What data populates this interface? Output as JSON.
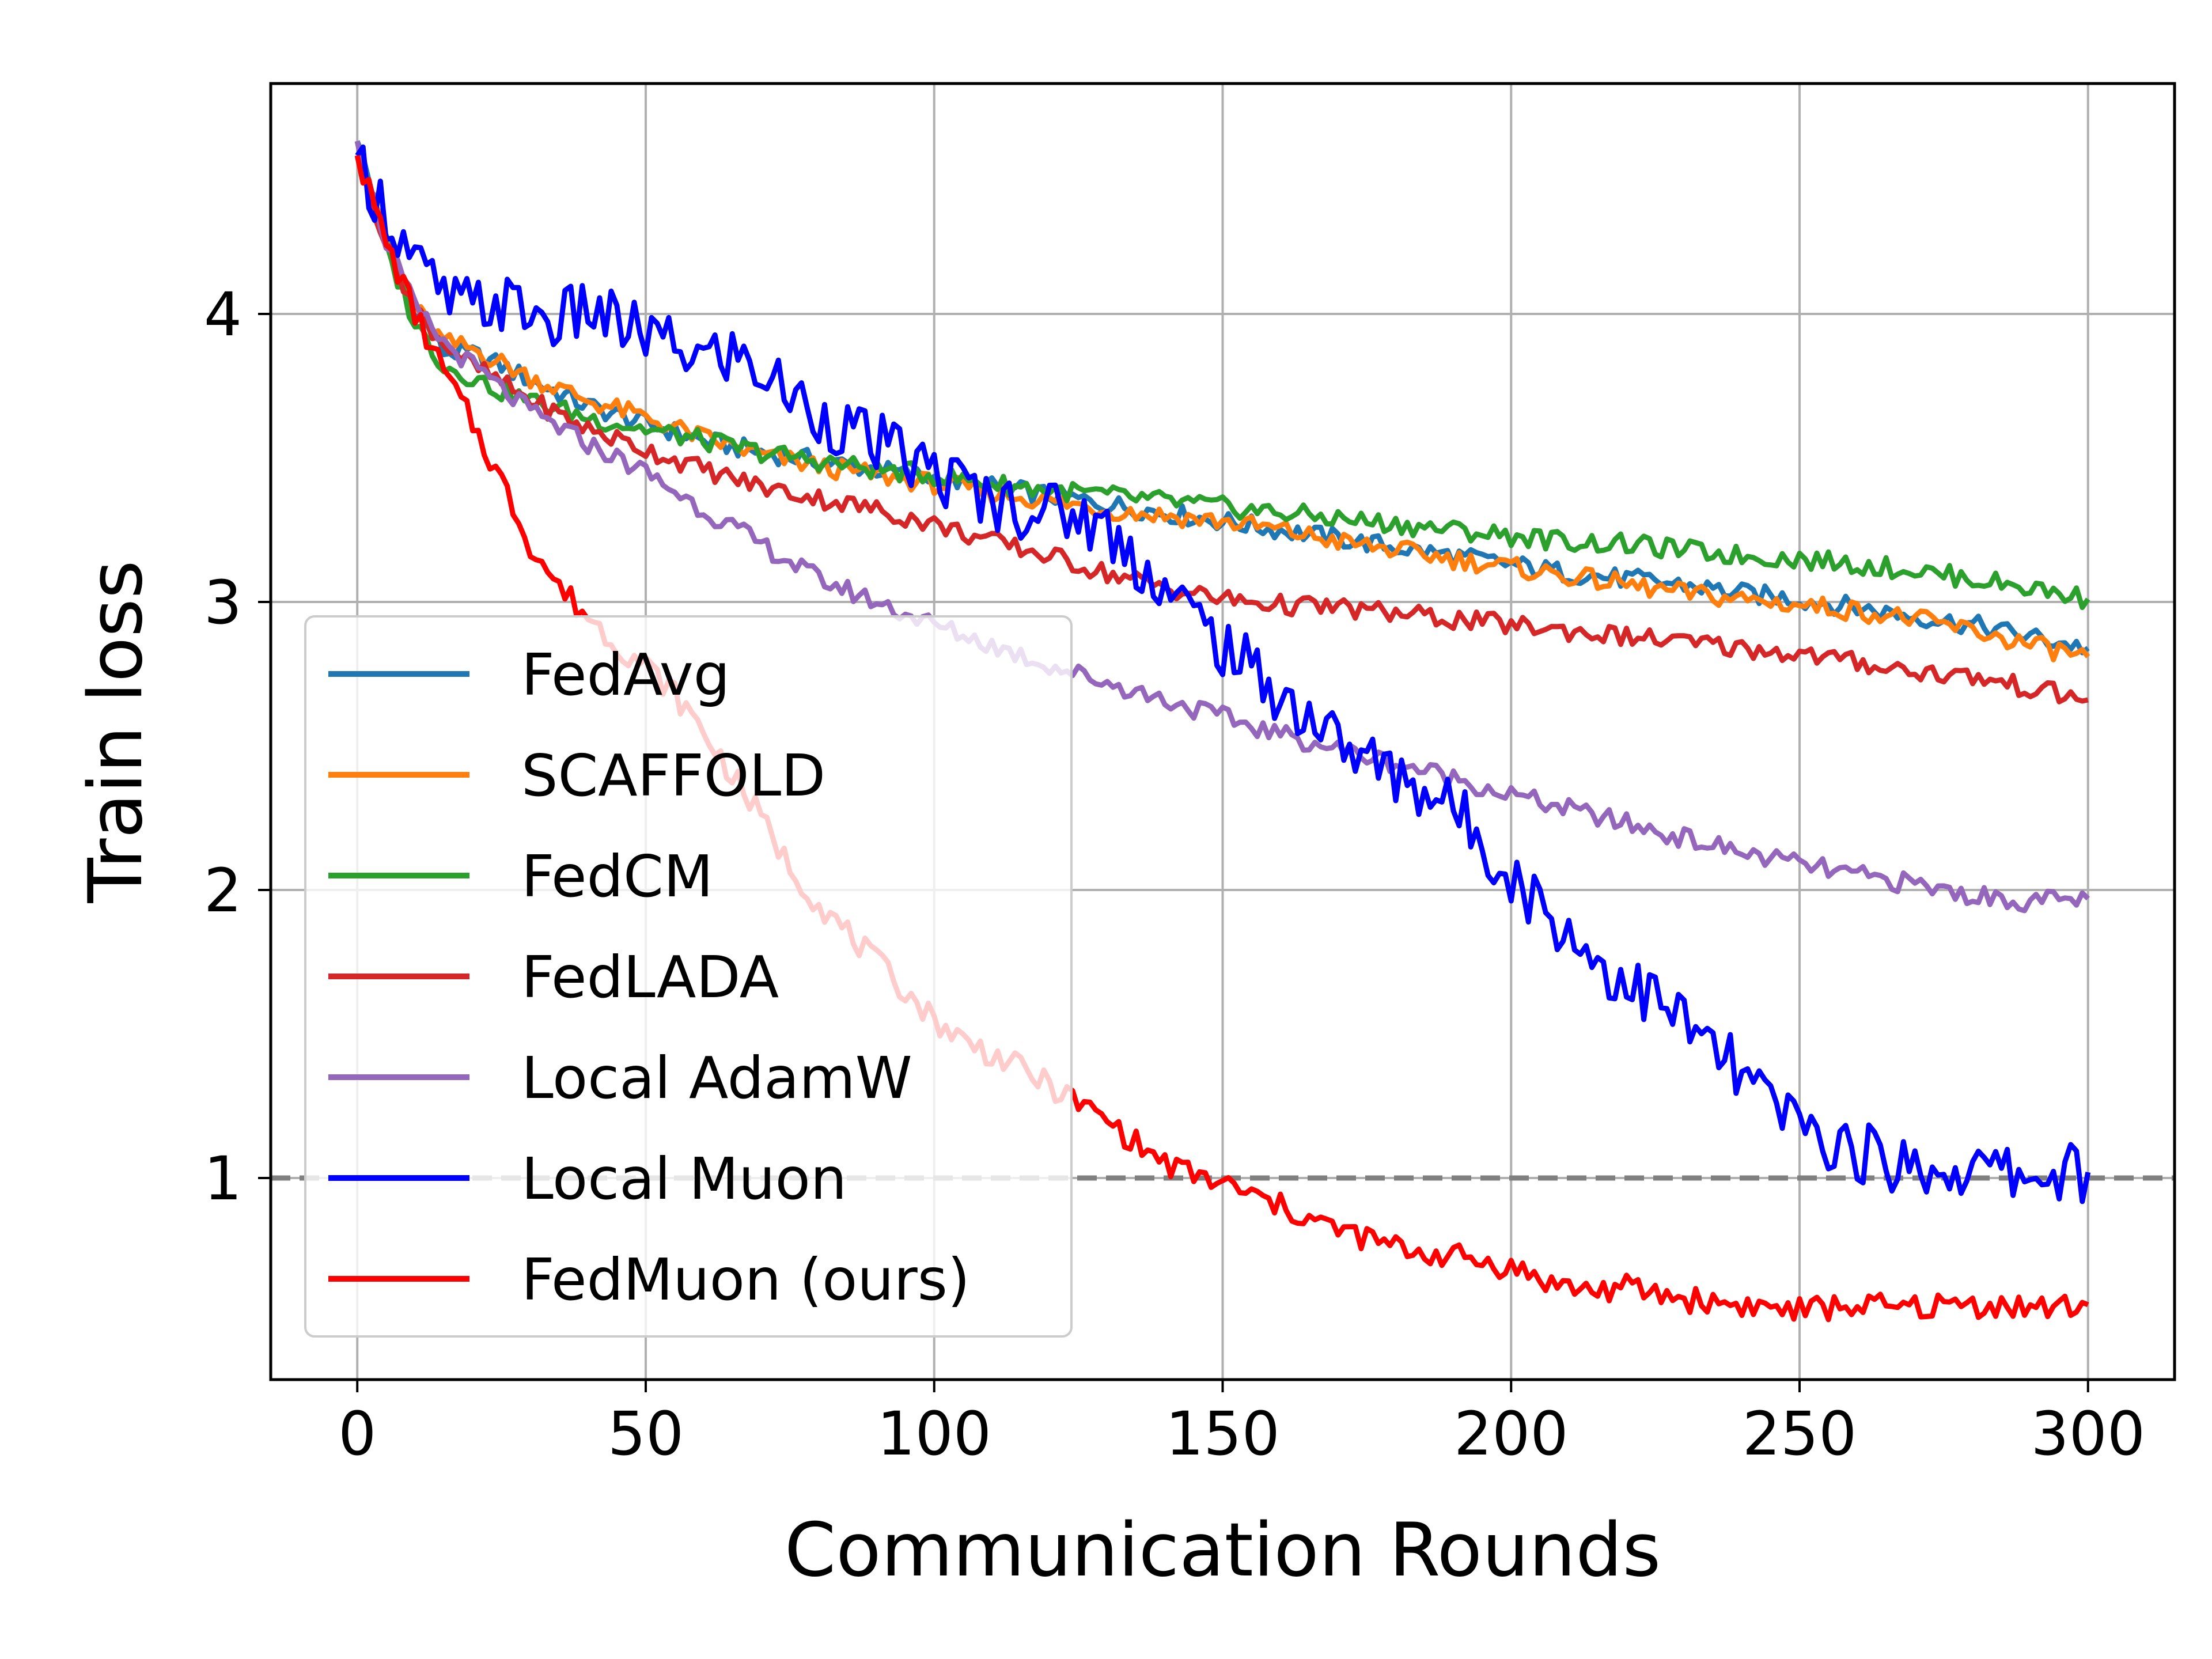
{
  "chart_data": {
    "type": "line",
    "title": "",
    "xlabel": "Communication Rounds",
    "ylabel": "Train loss",
    "xlim": [
      -15,
      315
    ],
    "ylim": [
      0.3,
      4.8
    ],
    "xticks": [
      0,
      50,
      100,
      150,
      200,
      250,
      300
    ],
    "yticks": [
      1,
      2,
      3,
      4
    ],
    "grid": true,
    "legend_position": "lower-left",
    "reference_line": {
      "y": 1.0,
      "style": "dashed",
      "color": "#808080"
    },
    "series": [
      {
        "name": "FedAvg",
        "color": "#1f77b4",
        "x": [
          0,
          5,
          10,
          15,
          20,
          25,
          30,
          40,
          50,
          60,
          70,
          80,
          90,
          100,
          110,
          120,
          130,
          140,
          150,
          160,
          170,
          180,
          190,
          200,
          210,
          220,
          230,
          240,
          250,
          260,
          270,
          280,
          290,
          300
        ],
        "y": [
          4.6,
          4.25,
          4.02,
          3.87,
          3.86,
          3.82,
          3.77,
          3.68,
          3.62,
          3.56,
          3.52,
          3.49,
          3.46,
          3.43,
          3.4,
          3.37,
          3.34,
          3.31,
          3.28,
          3.25,
          3.22,
          3.19,
          3.16,
          3.13,
          3.1,
          3.08,
          3.06,
          3.03,
          3.01,
          2.98,
          2.95,
          2.92,
          2.88,
          2.84
        ]
      },
      {
        "name": "SCAFFOLD",
        "color": "#ff7f0e",
        "x": [
          0,
          5,
          10,
          15,
          20,
          25,
          30,
          40,
          50,
          60,
          70,
          80,
          90,
          100,
          110,
          120,
          130,
          140,
          150,
          160,
          170,
          180,
          190,
          200,
          210,
          220,
          230,
          240,
          250,
          260,
          270,
          280,
          290,
          300
        ],
        "y": [
          4.6,
          4.25,
          4.02,
          3.9,
          3.88,
          3.83,
          3.78,
          3.7,
          3.64,
          3.57,
          3.51,
          3.47,
          3.44,
          3.41,
          3.38,
          3.35,
          3.32,
          3.3,
          3.28,
          3.25,
          3.21,
          3.18,
          3.15,
          3.12,
          3.09,
          3.06,
          3.03,
          3.01,
          2.99,
          2.97,
          2.94,
          2.9,
          2.85,
          2.81
        ]
      },
      {
        "name": "FedCM",
        "color": "#2ca02c",
        "x": [
          0,
          5,
          10,
          15,
          20,
          25,
          30,
          40,
          50,
          60,
          70,
          80,
          90,
          100,
          110,
          120,
          130,
          140,
          150,
          160,
          170,
          180,
          190,
          200,
          210,
          220,
          230,
          240,
          250,
          260,
          270,
          280,
          290,
          300
        ],
        "y": [
          4.6,
          4.22,
          3.97,
          3.82,
          3.78,
          3.73,
          3.7,
          3.64,
          3.6,
          3.56,
          3.52,
          3.49,
          3.46,
          3.44,
          3.41,
          3.39,
          3.37,
          3.35,
          3.33,
          3.31,
          3.29,
          3.27,
          3.25,
          3.23,
          3.21,
          3.2,
          3.18,
          3.16,
          3.15,
          3.13,
          3.11,
          3.08,
          3.05,
          3.01
        ]
      },
      {
        "name": "FedLADA",
        "color": "#d62728",
        "x": [
          0,
          5,
          10,
          15,
          20,
          25,
          30,
          40,
          50,
          60,
          70,
          80,
          90,
          100,
          110,
          120,
          130,
          140,
          150,
          160,
          170,
          180,
          190,
          200,
          210,
          220,
          230,
          240,
          250,
          260,
          270,
          280,
          290,
          300
        ],
        "y": [
          4.55,
          4.25,
          4.02,
          3.9,
          3.82,
          3.76,
          3.7,
          3.6,
          3.53,
          3.46,
          3.4,
          3.36,
          3.32,
          3.27,
          3.21,
          3.16,
          3.1,
          3.05,
          3.01,
          2.99,
          2.98,
          2.96,
          2.94,
          2.92,
          2.9,
          2.88,
          2.86,
          2.84,
          2.82,
          2.79,
          2.76,
          2.74,
          2.7,
          2.66
        ]
      },
      {
        "name": "Local AdamW",
        "color": "#9467bd",
        "x": [
          0,
          5,
          10,
          15,
          20,
          25,
          30,
          40,
          50,
          60,
          70,
          80,
          90,
          100,
          110,
          120,
          130,
          140,
          150,
          160,
          170,
          180,
          190,
          200,
          210,
          220,
          230,
          240,
          250,
          260,
          270,
          280,
          290,
          300
        ],
        "y": [
          4.6,
          4.25,
          4.02,
          3.9,
          3.82,
          3.74,
          3.66,
          3.55,
          3.45,
          3.32,
          3.2,
          3.08,
          3.0,
          2.92,
          2.85,
          2.78,
          2.72,
          2.66,
          2.6,
          2.54,
          2.49,
          2.44,
          2.39,
          2.33,
          2.28,
          2.23,
          2.18,
          2.13,
          2.09,
          2.05,
          2.02,
          1.98,
          1.96,
          1.97
        ]
      },
      {
        "name": "Local Muon",
        "color": "#0000ff",
        "x": [
          0,
          5,
          10,
          15,
          20,
          25,
          30,
          35,
          40,
          45,
          50,
          55,
          60,
          65,
          70,
          75,
          80,
          85,
          90,
          95,
          100,
          105,
          110,
          115,
          120,
          125,
          130,
          135,
          140,
          145,
          150,
          155,
          160,
          165,
          170,
          175,
          180,
          185,
          190,
          195,
          200,
          205,
          210,
          215,
          220,
          225,
          230,
          235,
          240,
          245,
          250,
          255,
          260,
          265,
          270,
          275,
          280,
          285,
          290,
          295,
          300
        ],
        "y": [
          4.55,
          4.35,
          4.18,
          4.05,
          4.02,
          4.04,
          4.0,
          3.97,
          4.02,
          3.96,
          3.93,
          3.88,
          3.85,
          3.86,
          3.8,
          3.72,
          3.65,
          3.6,
          3.55,
          3.5,
          3.45,
          3.4,
          3.35,
          3.33,
          3.32,
          3.3,
          3.25,
          3.15,
          3.05,
          2.95,
          2.85,
          2.76,
          2.68,
          2.6,
          2.52,
          2.45,
          2.4,
          2.35,
          2.28,
          2.18,
          2.05,
          1.95,
          1.85,
          1.75,
          1.68,
          1.62,
          1.54,
          1.45,
          1.35,
          1.26,
          1.18,
          1.13,
          1.09,
          1.06,
          1.04,
          1.03,
          1.03,
          1.02,
          1.01,
          1.02,
          1.02
        ]
      },
      {
        "name": "FedMuon (ours)",
        "color": "#ff0000",
        "x": [
          0,
          5,
          10,
          15,
          20,
          25,
          30,
          35,
          40,
          45,
          50,
          55,
          60,
          65,
          70,
          75,
          80,
          85,
          90,
          95,
          100,
          105,
          110,
          115,
          120,
          125,
          130,
          135,
          140,
          145,
          150,
          155,
          160,
          165,
          170,
          175,
          180,
          185,
          190,
          195,
          200,
          205,
          210,
          215,
          220,
          225,
          230,
          235,
          240,
          245,
          250,
          255,
          260,
          265,
          270,
          275,
          280,
          285,
          290,
          295,
          300
        ],
        "y": [
          4.55,
          4.25,
          4.0,
          3.8,
          3.62,
          3.42,
          3.2,
          3.05,
          2.95,
          2.85,
          2.78,
          2.68,
          2.55,
          2.4,
          2.25,
          2.08,
          1.95,
          1.85,
          1.75,
          1.65,
          1.55,
          1.48,
          1.43,
          1.38,
          1.32,
          1.26,
          1.2,
          1.12,
          1.05,
          1.01,
          0.98,
          0.94,
          0.9,
          0.86,
          0.82,
          0.79,
          0.76,
          0.74,
          0.73,
          0.71,
          0.69,
          0.65,
          0.62,
          0.61,
          0.62,
          0.6,
          0.58,
          0.57,
          0.56,
          0.55,
          0.54,
          0.55,
          0.56,
          0.55,
          0.55,
          0.56,
          0.56,
          0.56,
          0.55,
          0.55,
          0.56
        ]
      }
    ]
  }
}
